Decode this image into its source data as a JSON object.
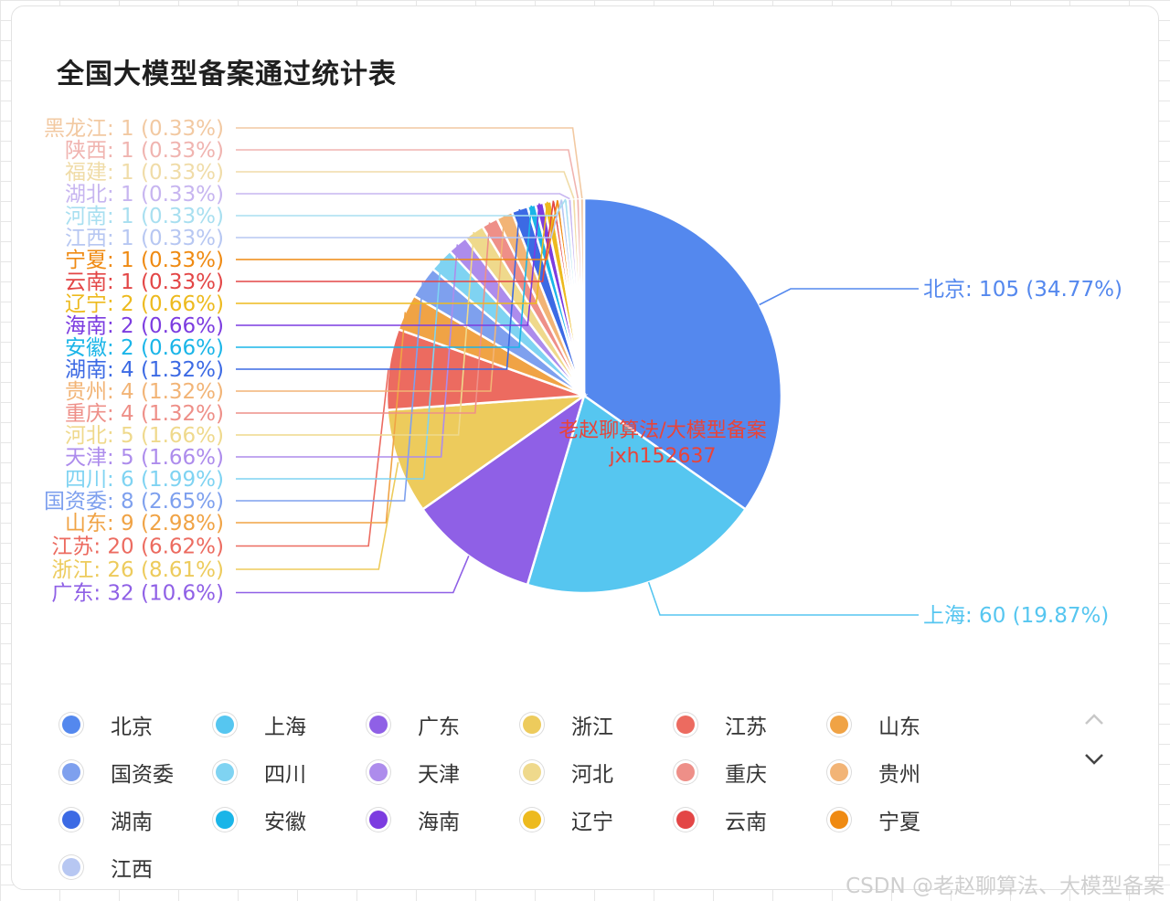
{
  "chart_data": {
    "type": "pie",
    "title": "全国大模型备案通过统计表",
    "slices": [
      {
        "name": "北京",
        "value": 105,
        "label": "北京: 105 (34.77%)",
        "color": "#5488ee"
      },
      {
        "name": "上海",
        "value": 60,
        "label": "上海: 60 (19.87%)",
        "color": "#56c6f0"
      },
      {
        "name": "广东",
        "value": 32,
        "label": "广东: 32 (10.6%)",
        "color": "#8f60e6"
      },
      {
        "name": "浙江",
        "value": 26,
        "label": "浙江: 26 (8.61%)",
        "color": "#edcb5c"
      },
      {
        "name": "江苏",
        "value": 20,
        "label": "江苏: 20 (6.62%)",
        "color": "#ec6b60"
      },
      {
        "name": "山东",
        "value": 9,
        "label": "山东: 9 (2.98%)",
        "color": "#f0a345"
      },
      {
        "name": "国资委",
        "value": 8,
        "label": "国资委: 8 (2.65%)",
        "color": "#7ea0ee"
      },
      {
        "name": "四川",
        "value": 6,
        "label": "四川: 6 (1.99%)",
        "color": "#7fd3f2"
      },
      {
        "name": "天津",
        "value": 5,
        "label": "天津: 5 (1.66%)",
        "color": "#ad8cec"
      },
      {
        "name": "河北",
        "value": 5,
        "label": "河北: 5 (1.66%)",
        "color": "#efd98c"
      },
      {
        "name": "重庆",
        "value": 4,
        "label": "重庆: 4 (1.32%)",
        "color": "#ee8f88"
      },
      {
        "name": "贵州",
        "value": 4,
        "label": "贵州: 4 (1.32%)",
        "color": "#f2b476"
      },
      {
        "name": "湖南",
        "value": 4,
        "label": "湖南: 4 (1.32%)",
        "color": "#3c6ae4"
      },
      {
        "name": "安徽",
        "value": 2,
        "label": "安徽: 2 (0.66%)",
        "color": "#1ab5e8"
      },
      {
        "name": "海南",
        "value": 2,
        "label": "海南: 2 (0.66%)",
        "color": "#7c3ce0"
      },
      {
        "name": "辽宁",
        "value": 2,
        "label": "辽宁: 2 (0.66%)",
        "color": "#edba1e"
      },
      {
        "name": "云南",
        "value": 1,
        "label": "云南: 1 (0.33%)",
        "color": "#e34646"
      },
      {
        "name": "宁夏",
        "value": 1,
        "label": "宁夏: 1 (0.33%)",
        "color": "#ef8a12"
      },
      {
        "name": "江西",
        "value": 1,
        "label": "江西: 1 (0.33%)",
        "color": "#b7c7f2"
      },
      {
        "name": "河南",
        "value": 1,
        "label": "河南: 1 (0.33%)",
        "color": "#a8dff0"
      },
      {
        "name": "湖北",
        "value": 1,
        "label": "湖北: 1 (0.33%)",
        "color": "#c7b5f0"
      },
      {
        "name": "福建",
        "value": 1,
        "label": "福建: 1 (0.33%)",
        "color": "#f0dca8"
      },
      {
        "name": "陕西",
        "value": 1,
        "label": "陕西: 1 (0.33%)",
        "color": "#f0b4b0"
      },
      {
        "name": "黑龙江",
        "value": 1,
        "label": "黑龙江: 1 (0.33%)",
        "color": "#f2c9a2"
      }
    ],
    "watermark": [
      "老赵聊算法/大模型备案",
      "jxh152637"
    ],
    "legend": {
      "placement": "bottom",
      "items": [
        "北京",
        "上海",
        "广东",
        "浙江",
        "江苏",
        "山东",
        "国资委",
        "四川",
        "天津",
        "河北",
        "重庆",
        "贵州",
        "湖南",
        "安徽",
        "海南",
        "辽宁",
        "云南",
        "宁夏",
        "江西"
      ]
    }
  },
  "footer": {
    "csdn": "CSDN @老赵聊算法、大模型备案"
  }
}
